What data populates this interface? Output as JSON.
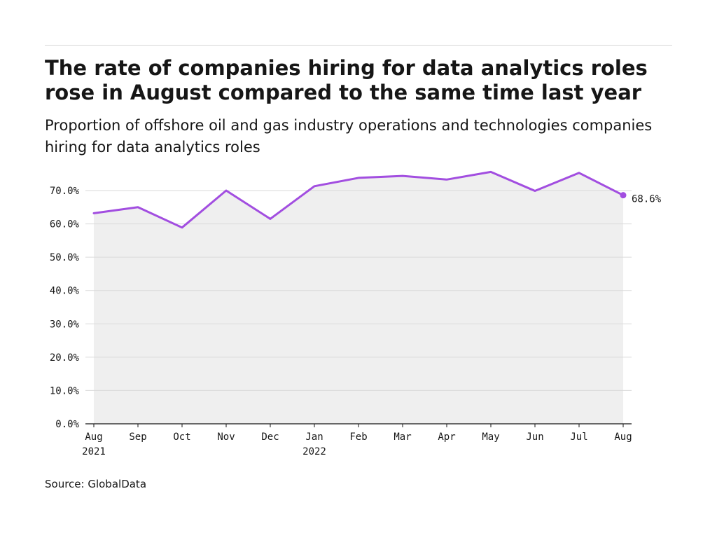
{
  "header": {
    "title": "The rate of companies hiring for data analytics roles rose in August compared to the same time last year",
    "subtitle": "Proportion of offshore oil and gas industry operations and technologies companies hiring for data analytics roles"
  },
  "footer": {
    "source": "Source: GlobalData"
  },
  "colors": {
    "line": "#a24ee0",
    "plot_bg": "#efefef",
    "grid": "#dadada",
    "axis": "#161616"
  },
  "chart_data": {
    "type": "area",
    "x": [
      "Aug 2021",
      "Sep 2021",
      "Oct 2021",
      "Nov 2021",
      "Dec 2021",
      "Jan 2022",
      "Feb 2022",
      "Mar 2022",
      "Apr 2022",
      "May 2022",
      "Jun 2022",
      "Jul 2022",
      "Aug 2022"
    ],
    "tick_labels": [
      [
        "Aug",
        "2021"
      ],
      [
        "Sep"
      ],
      [
        "Oct"
      ],
      [
        "Nov"
      ],
      [
        "Dec"
      ],
      [
        "Jan",
        "2022"
      ],
      [
        "Feb"
      ],
      [
        "Mar"
      ],
      [
        "Apr"
      ],
      [
        "May"
      ],
      [
        "Jun"
      ],
      [
        "Jul"
      ],
      [
        "Aug"
      ]
    ],
    "series": [
      {
        "values": [
          63.2,
          65.0,
          58.9,
          70.0,
          61.5,
          71.3,
          73.8,
          74.4,
          73.3,
          75.6,
          69.9,
          75.3,
          68.6
        ]
      }
    ],
    "ylim": [
      0,
      70
    ],
    "yticks": [
      0,
      10,
      20,
      30,
      40,
      50,
      60,
      70
    ],
    "ytick_labels": [
      "0.0%",
      "10.0%",
      "20.0%",
      "30.0%",
      "40.0%",
      "50.0%",
      "60.0%",
      "70.0%"
    ],
    "end_label": "68.6%",
    "grid": true,
    "xlabel": "",
    "ylabel": ""
  }
}
